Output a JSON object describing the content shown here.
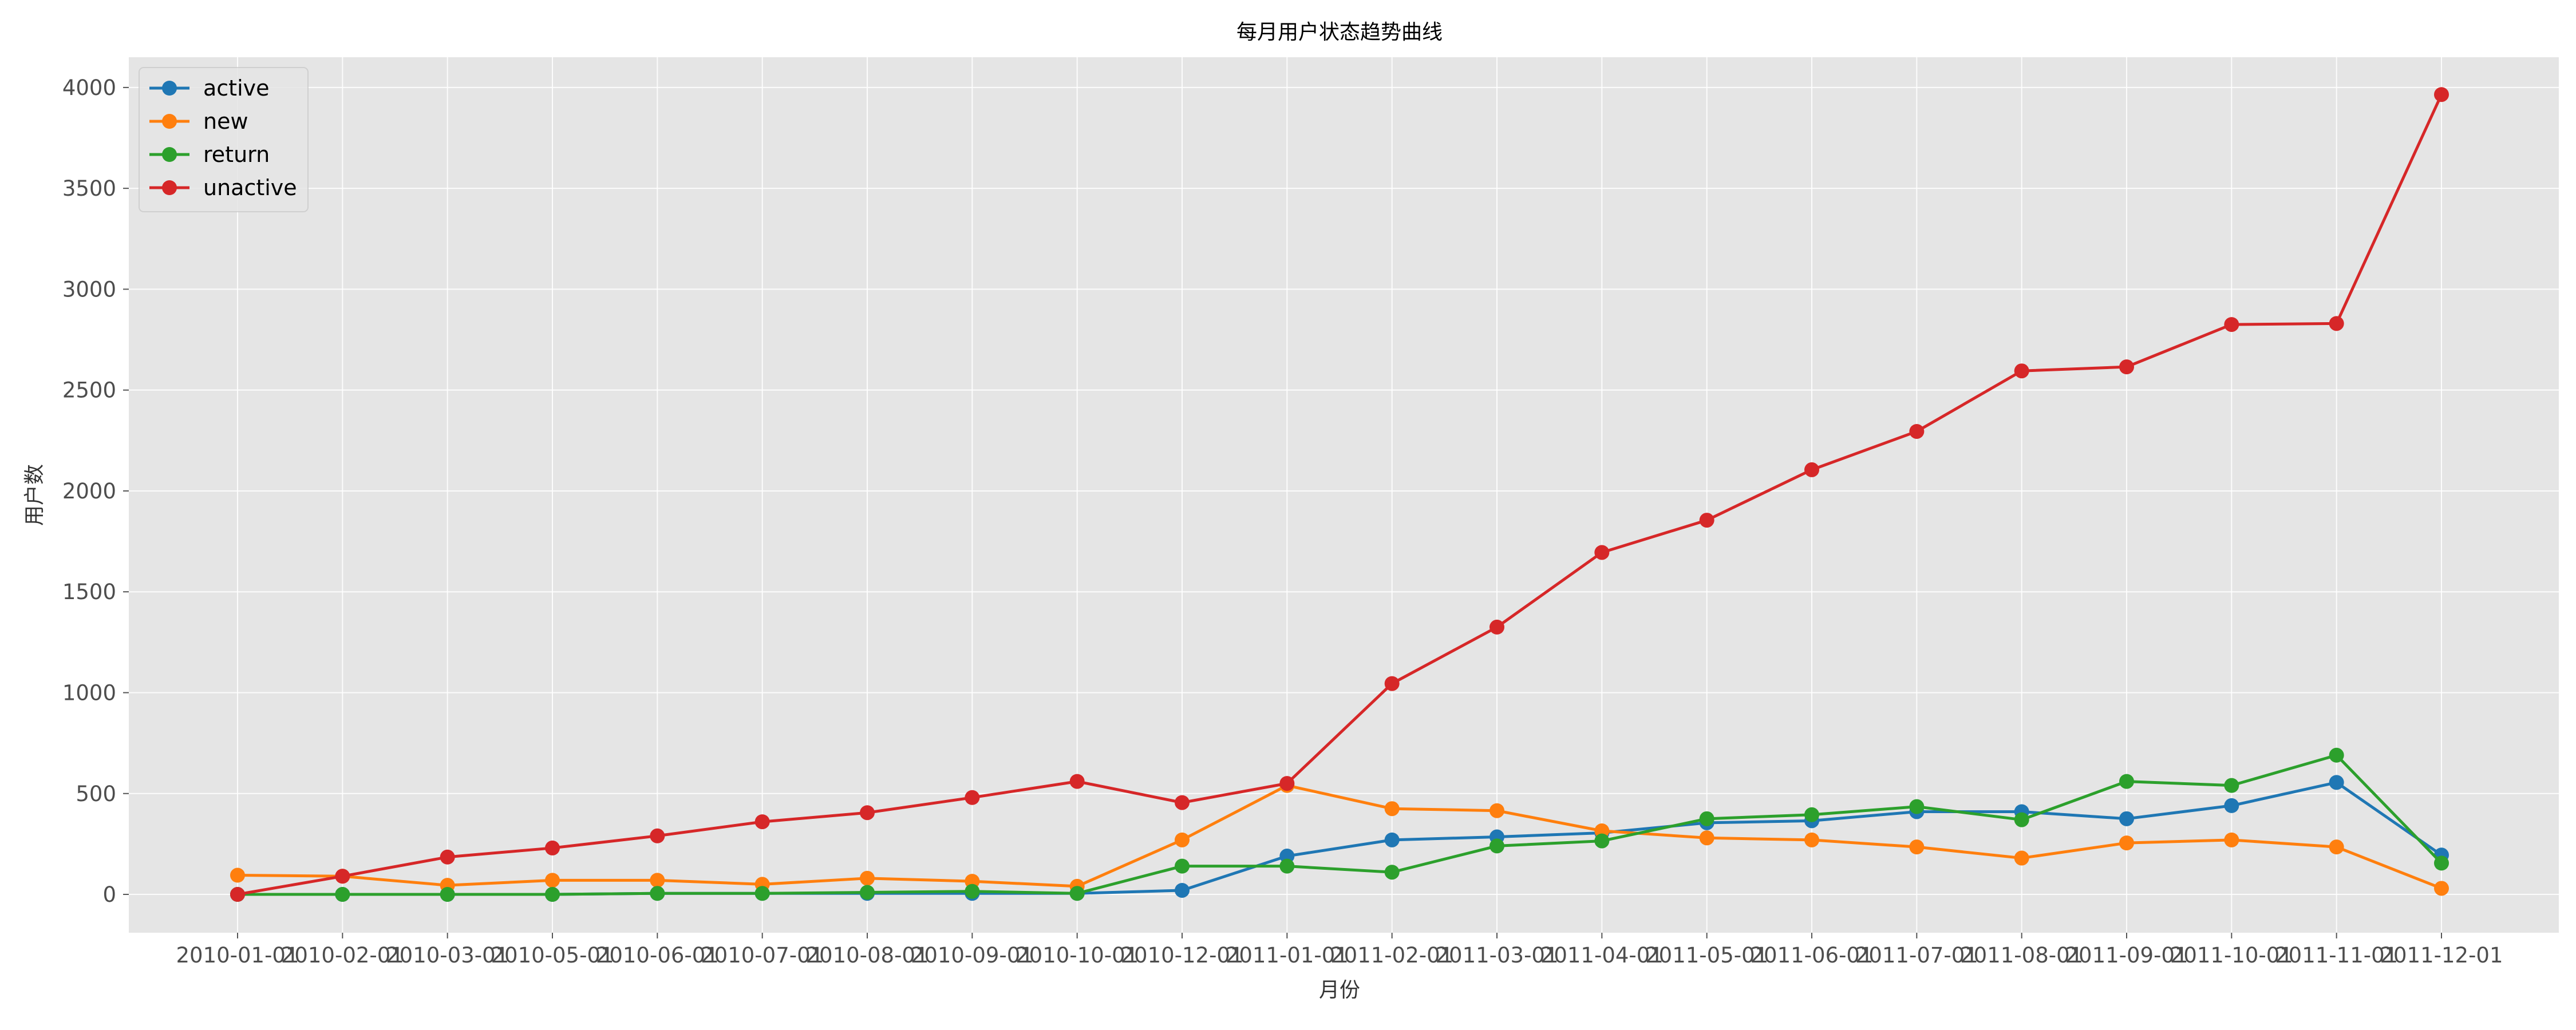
{
  "chart_data": {
    "type": "line",
    "title": "每月用户状态趋势曲线",
    "xlabel": "月份",
    "ylabel": "用户数",
    "x": [
      "2010-01-01",
      "2010-02-01",
      "2010-03-01",
      "2010-05-01",
      "2010-06-01",
      "2010-07-01",
      "2010-08-01",
      "2010-09-01",
      "2010-10-01",
      "2010-12-01",
      "2011-01-01",
      "2011-02-01",
      "2011-03-01",
      "2011-04-01",
      "2011-05-01",
      "2011-06-01",
      "2011-07-01",
      "2011-08-01",
      "2011-09-01",
      "2011-10-01",
      "2011-11-01",
      "2011-12-01"
    ],
    "x_tick_labels": [
      "2010-01-01",
      "2010-02-01",
      "2010-03-01",
      "2010-05-01",
      "2010-06-01",
      "2010-07-01",
      "2010-08-01",
      "2010-09-01",
      "2010-10-01",
      "2010-12-01",
      "2011-01-01",
      "2011-02-01",
      "2011-03-01",
      "2011-04-01",
      "2011-05-01",
      "2011-06-01",
      "2011-07-01",
      "2011-08-01",
      "2011-09-01",
      "2011-10-01",
      "2011-11-01",
      "2011-12-01"
    ],
    "ylim": [
      -190,
      4150
    ],
    "yticks": [
      0,
      500,
      1000,
      1500,
      2000,
      2500,
      3000,
      3500,
      4000
    ],
    "grid": true,
    "legend_position": "top-left",
    "series": [
      {
        "name": "active",
        "color": "#1f77b4",
        "values": [
          0,
          0,
          0,
          0,
          5,
          5,
          5,
          5,
          5,
          20,
          190,
          270,
          285,
          305,
          355,
          365,
          410,
          410,
          375,
          440,
          555,
          195
        ]
      },
      {
        "name": "new",
        "color": "#ff7f0e",
        "values": [
          95,
          90,
          45,
          70,
          70,
          50,
          80,
          65,
          40,
          270,
          540,
          425,
          415,
          315,
          280,
          270,
          235,
          180,
          255,
          270,
          235,
          30
        ]
      },
      {
        "name": "return",
        "color": "#2ca02c",
        "values": [
          0,
          0,
          0,
          0,
          5,
          5,
          10,
          15,
          5,
          140,
          140,
          110,
          240,
          265,
          375,
          395,
          435,
          370,
          560,
          540,
          690,
          155
        ]
      },
      {
        "name": "unactive",
        "color": "#d62728",
        "values": [
          0,
          90,
          185,
          230,
          290,
          360,
          405,
          480,
          560,
          455,
          550,
          1045,
          1325,
          1695,
          1855,
          2105,
          2295,
          2595,
          2615,
          2825,
          2830,
          3965
        ]
      }
    ]
  }
}
